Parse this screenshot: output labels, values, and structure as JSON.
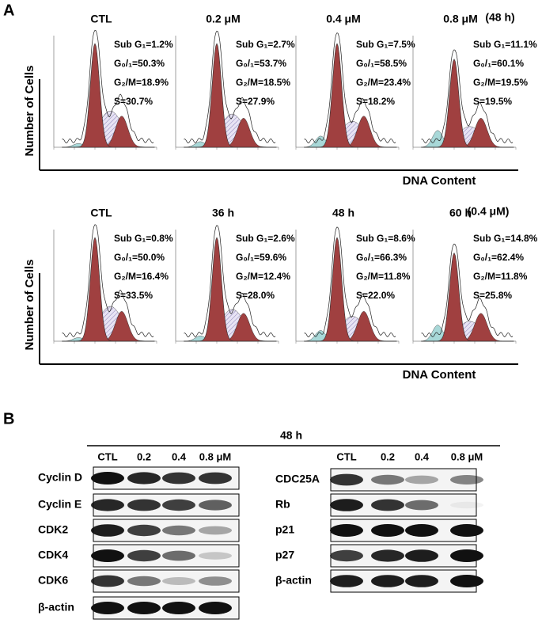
{
  "panel_a": {
    "label": "A",
    "rows": [
      {
        "y_label": "Number of Cells",
        "x_label": "DNA Content",
        "note": "(48 h)",
        "panels": [
          {
            "title": "CTL",
            "stats": [
              "Sub G₁=1.2%",
              "G₀/₁=50.3%",
              "G₂/M=18.9%",
              "S=30.7%"
            ]
          },
          {
            "title": "0.2 μM",
            "stats": [
              "Sub G₁=2.7%",
              "G₀/₁=53.7%",
              "G₂/M=18.5%",
              "S=27.9%"
            ]
          },
          {
            "title": "0.4 μM",
            "stats": [
              "Sub G₁=7.5%",
              "G₀/₁=58.5%",
              "G₂/M=23.4%",
              "S=18.2%"
            ]
          },
          {
            "title": "0.8 μM",
            "stats": [
              "Sub G₁=11.1%",
              "G₀/₁=60.1%",
              "G₂/M=19.5%",
              "S=19.5%"
            ]
          }
        ]
      },
      {
        "y_label": "Number of Cells",
        "x_label": "DNA Content",
        "note": "(0.4 μM)",
        "panels": [
          {
            "title": "CTL",
            "stats": [
              "Sub G₁=0.8%",
              "G₀/₁=50.0%",
              "G₂/M=16.4%",
              "S=33.5%"
            ]
          },
          {
            "title": "36 h",
            "stats": [
              "Sub G₁=2.6%",
              "G₀/₁=59.6%",
              "G₂/M=12.4%",
              "S=28.0%"
            ]
          },
          {
            "title": "48 h",
            "stats": [
              "Sub G₁=8.6%",
              "G₀/₁=66.3%",
              "G₂/M=11.8%",
              "S=22.0%"
            ]
          },
          {
            "title": "60 h",
            "stats": [
              "Sub G₁=14.8%",
              "G₀/₁=62.4%",
              "G₂/M=11.8%",
              "S=25.8%"
            ]
          }
        ]
      }
    ]
  },
  "panel_b": {
    "label": "B",
    "time": "48 h",
    "blots": [
      {
        "lanes": [
          "CTL",
          "0.2",
          "0.4",
          "0.8 μM"
        ],
        "proteins": [
          "Cyclin D",
          "Cyclin E",
          "CDK2",
          "CDK4",
          "CDK6",
          "β-actin"
        ]
      },
      {
        "lanes": [
          "CTL",
          "0.2",
          "0.4",
          "0.8 μM"
        ],
        "proteins": [
          "CDC25A",
          "Rb",
          "p21",
          "p27",
          "β-actin"
        ]
      }
    ]
  }
}
